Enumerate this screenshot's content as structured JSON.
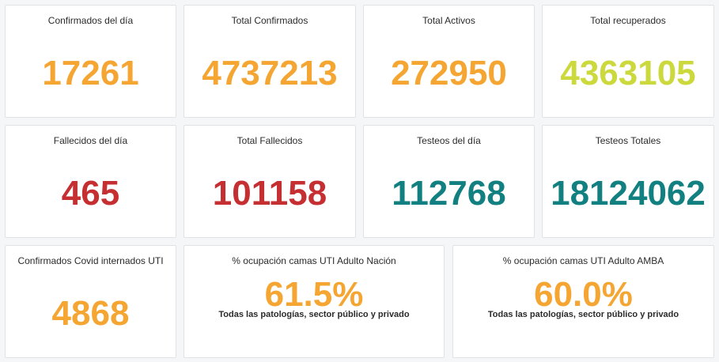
{
  "colors": {
    "orange": "#f4a532",
    "yellow_green": "#cbd93d",
    "red": "#c62f32",
    "teal": "#127f80"
  },
  "row1": {
    "confirmados_dia": {
      "title": "Confirmados del día",
      "value": "17261"
    },
    "total_confirmados": {
      "title": "Total Confirmados",
      "value": "4737213"
    },
    "total_activos": {
      "title": "Total Activos",
      "value": "272950"
    },
    "total_recuperados": {
      "title": "Total recuperados",
      "value": "4363105"
    }
  },
  "row2": {
    "fallecidos_dia": {
      "title": "Fallecidos del día",
      "value": "465"
    },
    "total_fallecidos": {
      "title": "Total Fallecidos",
      "value": "101158"
    },
    "testeos_dia": {
      "title": "Testeos del día",
      "value": "112768"
    },
    "testeos_totales": {
      "title": "Testeos Totales",
      "value": "18124062"
    }
  },
  "row3": {
    "internados_uti": {
      "title": "Confirmados Covid internados UTI",
      "value": "4868"
    },
    "ocupacion_nacion": {
      "title": "% ocupación camas UTI Adulto Nación",
      "value": "61.5%",
      "subtitle": "Todas las patologías, sector público y privado"
    },
    "ocupacion_amba": {
      "title": "% ocupación camas UTI Adulto AMBA",
      "value": "60.0%",
      "subtitle": "Todas las patologías, sector público y privado"
    }
  }
}
